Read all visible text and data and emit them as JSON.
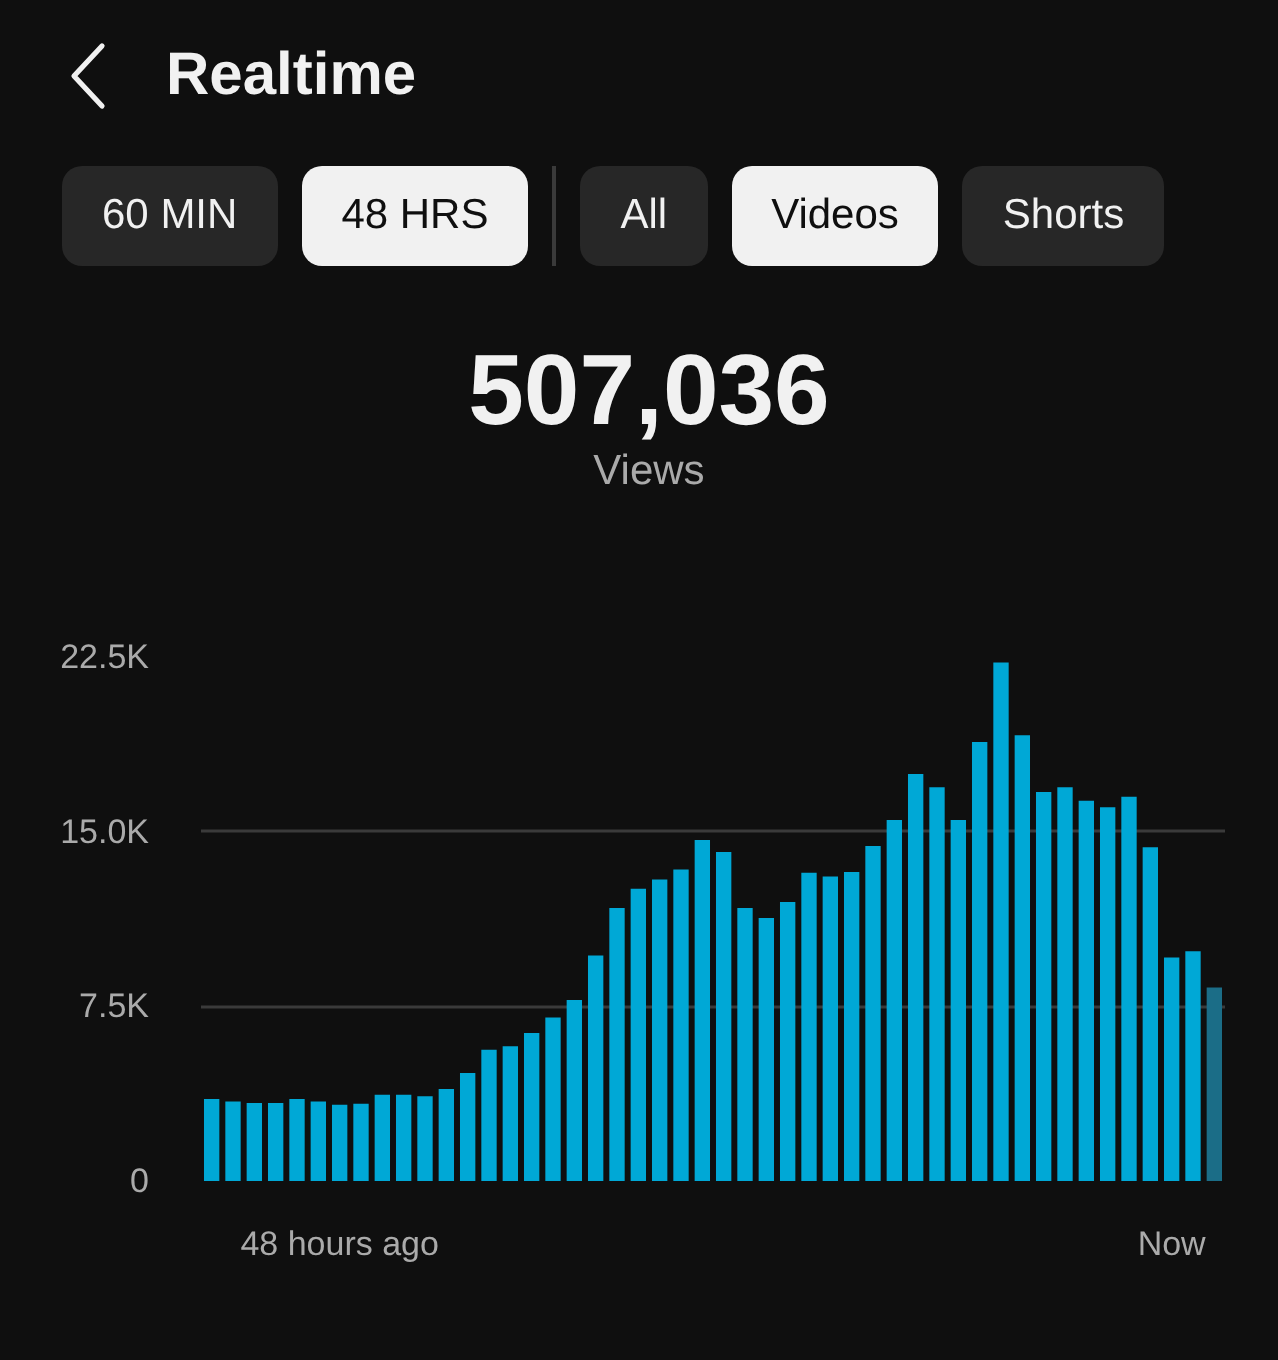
{
  "chart_data": {
    "type": "bar",
    "title": "Realtime",
    "annotations": [
      "60 MIN",
      "48 HRS",
      "All",
      "Videos",
      "Shorts",
      "507,036",
      "Views"
    ],
    "categories": [
      null,
      null,
      null,
      null,
      null,
      null,
      "48 hours ago",
      null,
      null,
      null,
      null,
      null,
      null,
      null,
      null,
      null,
      null,
      null,
      null,
      null,
      null,
      null,
      null,
      null,
      null,
      null,
      null,
      null,
      null,
      null,
      null,
      null,
      null,
      null,
      null,
      null,
      null,
      null,
      null,
      null,
      null,
      null,
      null,
      null,
      null,
      "Now",
      null,
      null
    ],
    "values": [
      3.52,
      3.41,
      3.35,
      3.35,
      3.52,
      3.41,
      3.27,
      3.32,
      3.7,
      3.7,
      3.64,
      3.95,
      4.64,
      5.64,
      5.79,
      6.36,
      7.02,
      7.77,
      9.68,
      11.72,
      12.55,
      12.95,
      13.38,
      14.64,
      14.13,
      11.72,
      11.29,
      11.98,
      13.24,
      13.07,
      13.27,
      14.38,
      15.5,
      17.48,
      16.91,
      15.5,
      18.85,
      22.26,
      19.14,
      16.7,
      16.91,
      16.33,
      16.05,
      16.5,
      14.33,
      9.6,
      9.86,
      8.31
    ],
    "colors": [
      "#00a8d6",
      "#00a8d6",
      "#00a8d6",
      "#00a8d6",
      "#00a8d6",
      "#00a8d6",
      "#00a8d6",
      "#00a8d6",
      "#00a8d6",
      "#00a8d6",
      "#00a8d6",
      "#00a8d6",
      "#00a8d6",
      "#00a8d6",
      "#00a8d6",
      "#00a8d6",
      "#00a8d6",
      "#00a8d6",
      "#00a8d6",
      "#00a8d6",
      "#00a8d6",
      "#00a8d6",
      "#00a8d6",
      "#00a8d6",
      "#00a8d6",
      "#00a8d6",
      "#00a8d6",
      "#00a8d6",
      "#00a8d6",
      "#00a8d6",
      "#00a8d6",
      "#00a8d6",
      "#00a8d6",
      "#00a8d6",
      "#00a8d6",
      "#00a8d6",
      "#00a8d6",
      "#00a8d6",
      "#00a8d6",
      "#00a8d6",
      "#00a8d6",
      "#00a8d6",
      "#00a8d6",
      "#00a8d6",
      "#00a8d6",
      "#00a8d6",
      "#00a8d6",
      "#1b6d87"
    ],
    "ylim": [
      0,
      22.5
    ],
    "yticks": [
      0,
      {
        "value": 7.5,
        "label": "7.5K"
      },
      {
        "value": 15,
        "label": "15.0K"
      },
      {
        "value": 22.5,
        "label": "22.5K"
      }
    ],
    "grid": "y"
  }
}
